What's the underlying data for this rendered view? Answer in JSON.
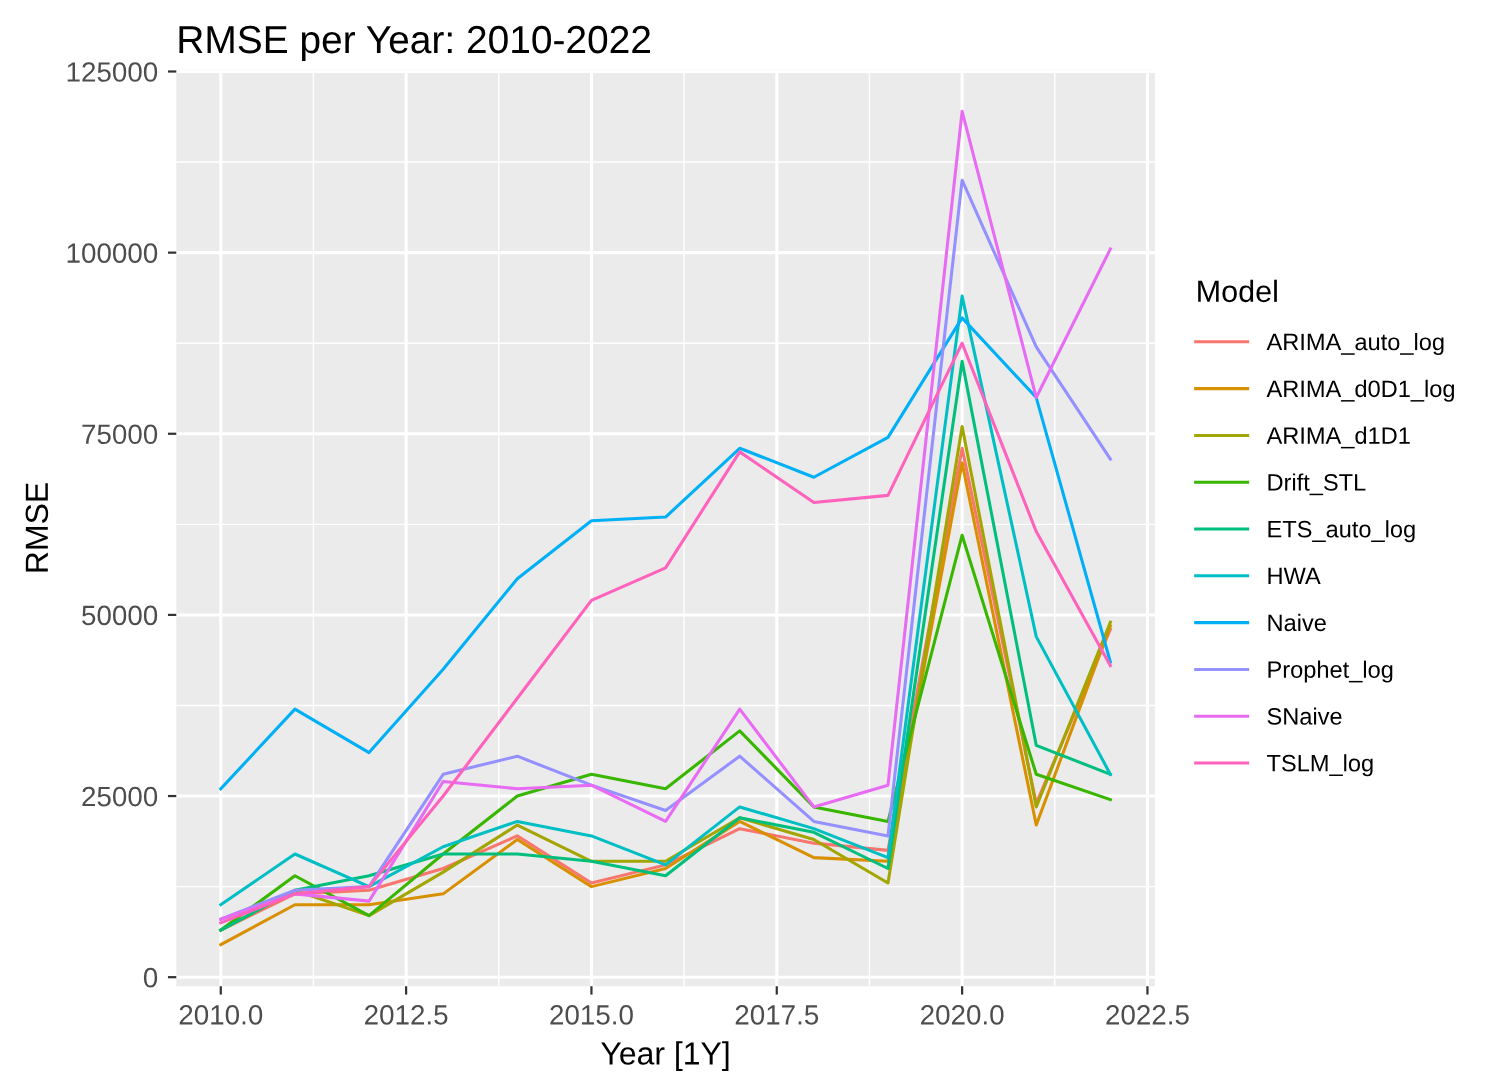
{
  "chart_data": {
    "type": "line",
    "title": "RMSE per Year: 2010-2022",
    "xlabel": "Year [1Y]",
    "ylabel": "RMSE",
    "legend_title": "Model",
    "legend": "right",
    "grid": true,
    "x": [
      2010,
      2011,
      2012,
      2013,
      2014,
      2015,
      2016,
      2017,
      2018,
      2019,
      2020,
      2021,
      2022
    ],
    "xlim": [
      2009.4,
      2022.6
    ],
    "xticks": [
      {
        "value": 2010,
        "label": "2010.0"
      },
      {
        "value": 2012.5,
        "label": "2012.5"
      },
      {
        "value": 2015,
        "label": "2015.0"
      },
      {
        "value": 2017.5,
        "label": "2017.5"
      },
      {
        "value": 2020,
        "label": "2020.0"
      },
      {
        "value": 2022.5,
        "label": "2022.5"
      }
    ],
    "ylim": [
      -1250,
      125250
    ],
    "yticks": [
      0,
      25000,
      50000,
      75000,
      100000,
      125000
    ],
    "series": [
      {
        "name": "ARIMA_auto_log",
        "color": "#f8766d",
        "values": [
          6500,
          11500,
          12000,
          15000,
          19500,
          13000,
          15500,
          20500,
          18500,
          17500,
          73000,
          24000,
          48000
        ]
      },
      {
        "name": "ARIMA_d0D1_log",
        "color": "#d89000",
        "values": [
          4500,
          10000,
          10000,
          11500,
          19000,
          12500,
          15000,
          21500,
          16500,
          16000,
          71000,
          21000,
          48500
        ]
      },
      {
        "name": "ARIMA_d1D1",
        "color": "#a3a500",
        "values": [
          6500,
          12000,
          8500,
          14500,
          21000,
          16000,
          16000,
          22000,
          19000,
          13000,
          76000,
          23500,
          49000
        ]
      },
      {
        "name": "Drift_STL",
        "color": "#39b600",
        "values": [
          6500,
          14000,
          8500,
          17000,
          25000,
          28000,
          26000,
          34000,
          23500,
          21500,
          61000,
          28000,
          24500
        ]
      },
      {
        "name": "ETS_auto_log",
        "color": "#00bf7d",
        "values": [
          6500,
          12000,
          14000,
          17000,
          17000,
          16000,
          14000,
          22000,
          20000,
          15000,
          85000,
          32000,
          28000
        ]
      },
      {
        "name": "HWA",
        "color": "#00bfc4",
        "values": [
          10000,
          17000,
          12500,
          18000,
          21500,
          19500,
          15500,
          23500,
          20500,
          16500,
          94000,
          47000,
          28000
        ]
      },
      {
        "name": "Naive",
        "color": "#00b0f6",
        "values": [
          26000,
          37000,
          31000,
          42500,
          55000,
          63000,
          63500,
          73000,
          69000,
          74500,
          91000,
          80000,
          43500
        ]
      },
      {
        "name": "Prophet_log",
        "color": "#9590ff",
        "values": [
          8000,
          12000,
          12500,
          28000,
          30500,
          26500,
          23000,
          30500,
          21500,
          19500,
          110000,
          87000,
          71500
        ]
      },
      {
        "name": "SNaive",
        "color": "#e76bf3",
        "values": [
          8000,
          11500,
          10500,
          27000,
          26000,
          26500,
          21500,
          37000,
          23500,
          26500,
          119500,
          80000,
          100500
        ]
      },
      {
        "name": "TSLM_log",
        "color": "#ff62bc",
        "values": [
          7500,
          11500,
          12500,
          25000,
          38500,
          52000,
          56500,
          72500,
          65500,
          66500,
          87500,
          61500,
          43000
        ]
      }
    ]
  }
}
